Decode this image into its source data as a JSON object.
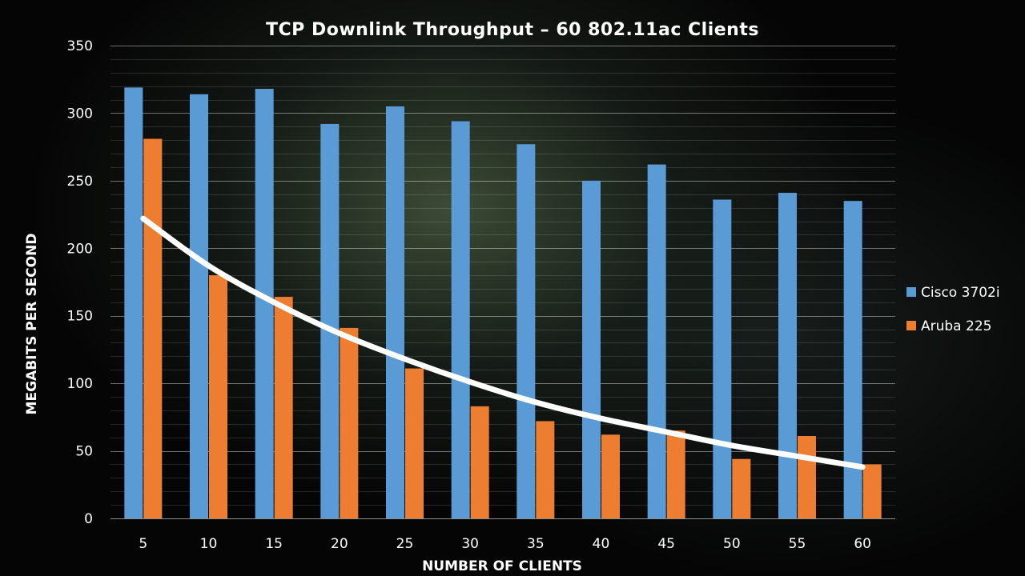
{
  "chart_data": {
    "type": "bar",
    "title": "TCP Downlink Throughput – 60 802.11ac Clients",
    "xlabel": "NUMBER OF CLIENTS",
    "ylabel": "MEGABITS PER SECOND",
    "categories": [
      "5",
      "10",
      "15",
      "20",
      "25",
      "30",
      "35",
      "40",
      "45",
      "50",
      "55",
      "60"
    ],
    "ylim": [
      0,
      350
    ],
    "yticks": [
      "0",
      "50",
      "100",
      "150",
      "200",
      "250",
      "300",
      "350"
    ],
    "series": [
      {
        "name": "Cisco 3702i",
        "color": "#5B9BD5",
        "values": [
          319,
          314,
          318,
          292,
          305,
          294,
          277,
          250,
          262,
          236,
          241,
          235
        ]
      },
      {
        "name": "Aruba 225",
        "color": "#ED7D31",
        "values": [
          281,
          180,
          164,
          141,
          111,
          83,
          72,
          62,
          65,
          44,
          61,
          40
        ]
      }
    ],
    "trendline": {
      "color": "#ffffff",
      "type": "exponential",
      "values": [
        222,
        187,
        160,
        137,
        118,
        101,
        86,
        74,
        64,
        54,
        46,
        38
      ]
    },
    "grid": true,
    "legend_position": "right"
  }
}
